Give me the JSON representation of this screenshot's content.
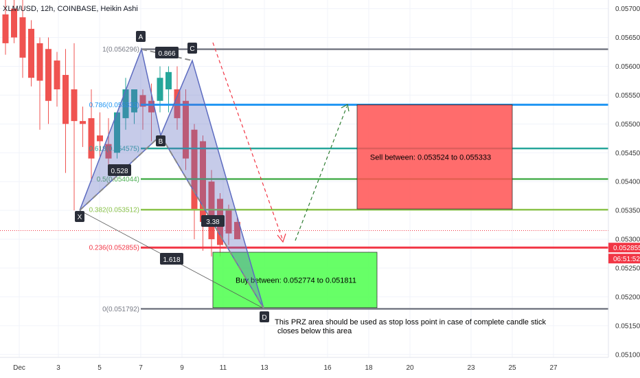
{
  "header": {
    "title": "XLM/USD, 12h, COINBASE, Heikin Ashi"
  },
  "chart_data": {
    "type": "candlestick",
    "ylim": [
      0.05095,
      0.05715
    ],
    "y_ticks": [
      "0.057000",
      "0.056500",
      "0.056000",
      "0.055500",
      "0.055000",
      "0.054500",
      "0.054000",
      "0.053500",
      "0.053000",
      "0.052500",
      "0.052000",
      "0.051500",
      "0.051000"
    ],
    "x_ticks": [
      "Dec",
      "3",
      "5",
      "7",
      "9",
      "11",
      "13",
      "16",
      "18",
      "20",
      "23",
      "25",
      "27"
    ],
    "candles": [
      {
        "i": 0,
        "o": 0.0569,
        "h": 0.05715,
        "c": 0.0564,
        "l": 0.0562
      },
      {
        "i": 1,
        "o": 0.057,
        "h": 0.05715,
        "c": 0.0565,
        "l": 0.0564
      },
      {
        "i": 2,
        "o": 0.05685,
        "h": 0.05715,
        "c": 0.05615,
        "l": 0.0558
      },
      {
        "i": 3,
        "o": 0.05665,
        "h": 0.0568,
        "c": 0.0558,
        "l": 0.05565
      },
      {
        "i": 4,
        "o": 0.0564,
        "h": 0.0565,
        "c": 0.05575,
        "l": 0.0549
      },
      {
        "i": 5,
        "o": 0.0563,
        "h": 0.0565,
        "c": 0.0554,
        "l": 0.055
      },
      {
        "i": 6,
        "o": 0.0561,
        "h": 0.05625,
        "c": 0.0556,
        "l": 0.0553
      },
      {
        "i": 7,
        "o": 0.05585,
        "h": 0.0563,
        "c": 0.055,
        "l": 0.05415
      },
      {
        "i": 8,
        "o": 0.0556,
        "h": 0.0564,
        "c": 0.05505,
        "l": 0.0535
      },
      {
        "i": 9,
        "o": 0.05505,
        "h": 0.0553,
        "c": 0.055,
        "l": 0.0546
      },
      {
        "i": 10,
        "o": 0.0551,
        "h": 0.0556,
        "c": 0.0544,
        "l": 0.054
      },
      {
        "i": 11,
        "o": 0.0548,
        "h": 0.0552,
        "c": 0.0547,
        "l": 0.0544
      },
      {
        "i": 12,
        "o": 0.05465,
        "h": 0.0551,
        "c": 0.0544,
        "l": 0.0542
      },
      {
        "i": 13,
        "o": 0.0545,
        "h": 0.0552,
        "c": 0.0552,
        "l": 0.0544
      },
      {
        "i": 14,
        "o": 0.0551,
        "h": 0.0558,
        "c": 0.0556,
        "l": 0.0549
      },
      {
        "i": 15,
        "o": 0.0552,
        "h": 0.0556,
        "c": 0.0556,
        "l": 0.055
      },
      {
        "i": 16,
        "o": 0.0555,
        "h": 0.0556,
        "c": 0.0553,
        "l": 0.0549
      },
      {
        "i": 17,
        "o": 0.0554,
        "h": 0.0557,
        "c": 0.0552,
        "l": 0.0547
      },
      {
        "i": 18,
        "o": 0.0554,
        "h": 0.056,
        "c": 0.0558,
        "l": 0.0552
      },
      {
        "i": 19,
        "o": 0.0556,
        "h": 0.056,
        "c": 0.0559,
        "l": 0.0552
      },
      {
        "i": 20,
        "o": 0.0556,
        "h": 0.056,
        "c": 0.0551,
        "l": 0.0549
      },
      {
        "i": 21,
        "o": 0.0554,
        "h": 0.0556,
        "c": 0.0544,
        "l": 0.0542
      },
      {
        "i": 22,
        "o": 0.0549,
        "h": 0.055,
        "c": 0.0535,
        "l": 0.053
      },
      {
        "i": 23,
        "o": 0.0547,
        "h": 0.0548,
        "c": 0.0533,
        "l": 0.0528
      },
      {
        "i": 24,
        "o": 0.054,
        "h": 0.0542,
        "c": 0.053,
        "l": 0.0527
      },
      {
        "i": 25,
        "o": 0.0537,
        "h": 0.0538,
        "c": 0.0529,
        "l": 0.0527
      },
      {
        "i": 26,
        "o": 0.0535,
        "h": 0.0536,
        "c": 0.0531,
        "l": 0.0529
      },
      {
        "i": 27,
        "o": 0.0533,
        "h": 0.0534,
        "c": 0.053,
        "l": 0.053
      }
    ],
    "fib_levels": [
      {
        "ratio": "1",
        "value": 0.056296,
        "label": "1(0.056296)",
        "color": "#787b86"
      },
      {
        "ratio": "0.786",
        "value": 0.055333,
        "label": "0.786(0.055333)",
        "color": "#2196f3"
      },
      {
        "ratio": "0.618",
        "value": 0.054575,
        "label": "0.618(0.054575)",
        "color": "#26a69a"
      },
      {
        "ratio": "0.5",
        "value": 0.054044,
        "label": "0.5(0.054044)",
        "color": "#4caf50"
      },
      {
        "ratio": "0.382",
        "value": 0.053512,
        "label": "0.382(0.053512)",
        "color": "#8bc34a"
      },
      {
        "ratio": "0.236",
        "value": 0.052855,
        "label": "0.236(0.052855)",
        "color": "#f23645"
      },
      {
        "ratio": "0",
        "value": 0.051792,
        "label": "0(0.051792)",
        "color": "#787b86"
      }
    ],
    "pattern_points": [
      {
        "name": "X",
        "x": 4.0,
        "y": 0.0535
      },
      {
        "name": "A",
        "x": 7.0,
        "y": 0.056296
      },
      {
        "name": "B",
        "x": 8.0,
        "y": 0.0548
      },
      {
        "name": "C",
        "x": 9.3,
        "y": 0.0561
      },
      {
        "name": "D",
        "x": 12.9,
        "y": 0.0518
      }
    ],
    "ratio_labels": [
      "0.866",
      "0.528",
      "3.38",
      "1.618"
    ],
    "price_tag": {
      "value": "0.052855",
      "countdown": "06:51:52",
      "color": "#f23645"
    },
    "current_price": 0.05315,
    "sell_zone": {
      "text": "Sell between: 0.053524 to 0.055333",
      "top": 0.055333,
      "bottom": 0.053524,
      "color": "#ff5252"
    },
    "buy_zone": {
      "text": "Buy between: 0.052774 to 0.051811",
      "top": 0.052774,
      "bottom": 0.051811,
      "color": "#4cff4c"
    },
    "annotation": [
      "This PRZ area should be used as stop loss point in case of complete candle stick",
      "closes below this area"
    ]
  }
}
